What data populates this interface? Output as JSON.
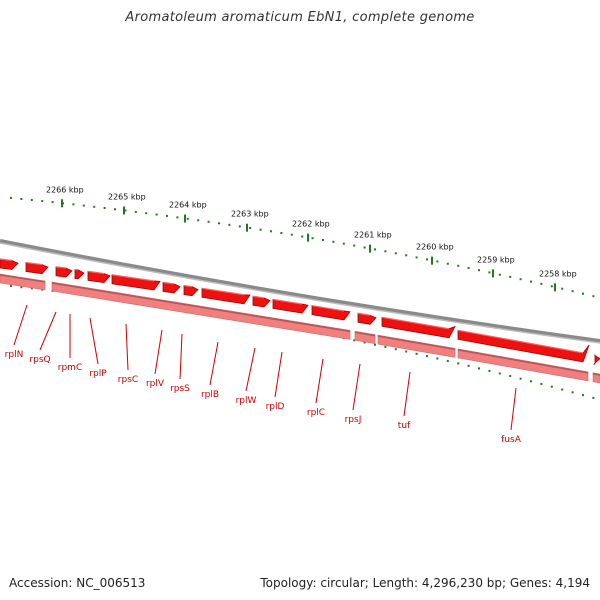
{
  "title": "Aromatoleum aromaticum EbN1, complete genome",
  "footer": {
    "accession": "Accession: NC_006513",
    "summary": "Topology: circular; Length: 4,296,230 bp; Genes: 4,194"
  },
  "ticks": [
    "2266 kbp",
    "2265 kbp",
    "2264 kbp",
    "2263 kbp",
    "2262 kbp",
    "2261 kbp",
    "2260 kbp",
    "2259 kbp",
    "2258 kbp"
  ],
  "genes": [
    "rplN",
    "rpsQ",
    "rpmC",
    "rplP",
    "rpsC",
    "rplV",
    "rpsS",
    "rplB",
    "rplW",
    "rplD",
    "rplC",
    "rpsJ",
    "tuf",
    "fusA"
  ],
  "colors": {
    "gene": "#ee1111",
    "gene_dark": "#aa0000",
    "gene_light": "#f08080",
    "backbone": "#8a8a8a",
    "tick": "#227722",
    "label": "#cc0000"
  }
}
